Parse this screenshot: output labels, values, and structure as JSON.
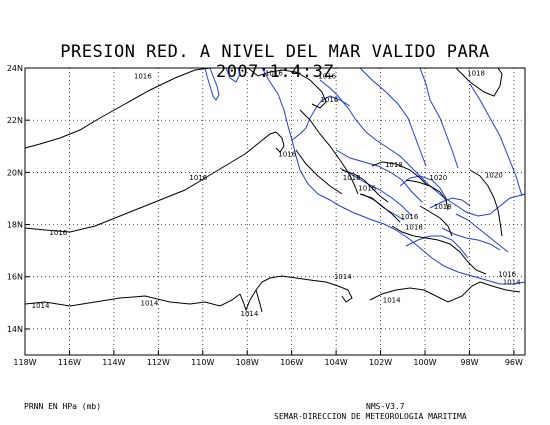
{
  "title": "PRESION RED. A NIVEL DEL MAR VALIDO PARA 2007:1:4:3Z",
  "map": {
    "lon_labels": [
      "118W",
      "116W",
      "114W",
      "112W",
      "110W",
      "108W",
      "106W",
      "104W",
      "102W",
      "100W",
      "98W",
      "96W"
    ],
    "lat_labels": [
      "14N",
      "16N",
      "18N",
      "20N",
      "22N",
      "24N"
    ],
    "isobar_labels": [
      {
        "text": "1016",
        "lon": -112.7,
        "lat": 23.7
      },
      {
        "text": "1016",
        "lon": -106.8,
        "lat": 23.8
      },
      {
        "text": "1016",
        "lon": -104.4,
        "lat": 23.7
      },
      {
        "text": "1016",
        "lon": -104.3,
        "lat": 22.8
      },
      {
        "text": "1018",
        "lon": -97.7,
        "lat": 23.8
      },
      {
        "text": "1016",
        "lon": -106.2,
        "lat": 20.7
      },
      {
        "text": "1016",
        "lon": -110.2,
        "lat": 19.8
      },
      {
        "text": "1016",
        "lon": -116.5,
        "lat": 17.7
      },
      {
        "text": "1018",
        "lon": -103.3,
        "lat": 19.8
      },
      {
        "text": "1016",
        "lon": -102.6,
        "lat": 19.4
      },
      {
        "text": "1018",
        "lon": -101.4,
        "lat": 20.3
      },
      {
        "text": "1020",
        "lon": -99.4,
        "lat": 19.8
      },
      {
        "text": "1020",
        "lon": -96.9,
        "lat": 19.9
      },
      {
        "text": "1016",
        "lon": -100.7,
        "lat": 18.3
      },
      {
        "text": "1018",
        "lon": -99.2,
        "lat": 18.7
      },
      {
        "text": "1018",
        "lon": -100.5,
        "lat": 17.9
      },
      {
        "text": "1014",
        "lon": -117.3,
        "lat": 14.9
      },
      {
        "text": "1014",
        "lon": -112.4,
        "lat": 15.0
      },
      {
        "text": "1014",
        "lon": -107.9,
        "lat": 14.6
      },
      {
        "text": "1014",
        "lon": -103.7,
        "lat": 16.0
      },
      {
        "text": "1014",
        "lon": -101.5,
        "lat": 15.1
      },
      {
        "text": "1016",
        "lon": -96.3,
        "lat": 16.1
      },
      {
        "text": "1014",
        "lon": -96.1,
        "lat": 15.8
      }
    ]
  },
  "footer": {
    "units": "PRNN EN HPa (mb)",
    "version": "NMS-V3.7",
    "organization": "SEMAR-DIRECCION DE METEOROLOGIA MARITIMA"
  }
}
